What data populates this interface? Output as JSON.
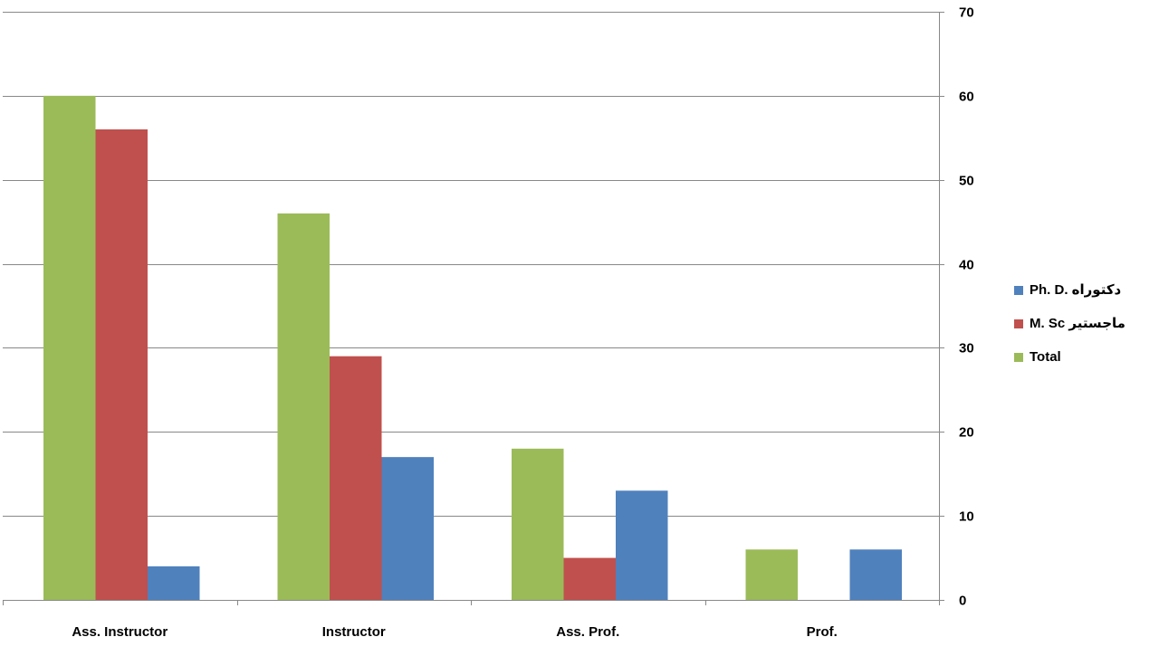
{
  "chart_data": {
    "type": "bar",
    "title": "",
    "xlabel": "",
    "ylabel": "",
    "categories": [
      "Ass. Instructor",
      "Instructor",
      "Ass. Prof.",
      "Prof."
    ],
    "series": [
      {
        "name": "Total",
        "values": [
          60,
          46,
          18,
          6
        ],
        "color": "#9BBB59"
      },
      {
        "name": "M. Sc ماجستير",
        "values": [
          56,
          29,
          5,
          0
        ],
        "color": "#C0504D"
      },
      {
        "name": "Ph. D. دكتوراه",
        "values": [
          4,
          17,
          13,
          6
        ],
        "color": "#4F81BD"
      }
    ],
    "legend_order": [
      2,
      1,
      0
    ],
    "ylim": [
      0,
      70
    ],
    "y_ticks": [
      0,
      10,
      20,
      30,
      40,
      50,
      60,
      70
    ],
    "y_axis_position": "right",
    "grid": true,
    "legend_position": "right"
  },
  "colors": {
    "gridline": "#888888",
    "axis": "#888888",
    "text": "#000000"
  }
}
